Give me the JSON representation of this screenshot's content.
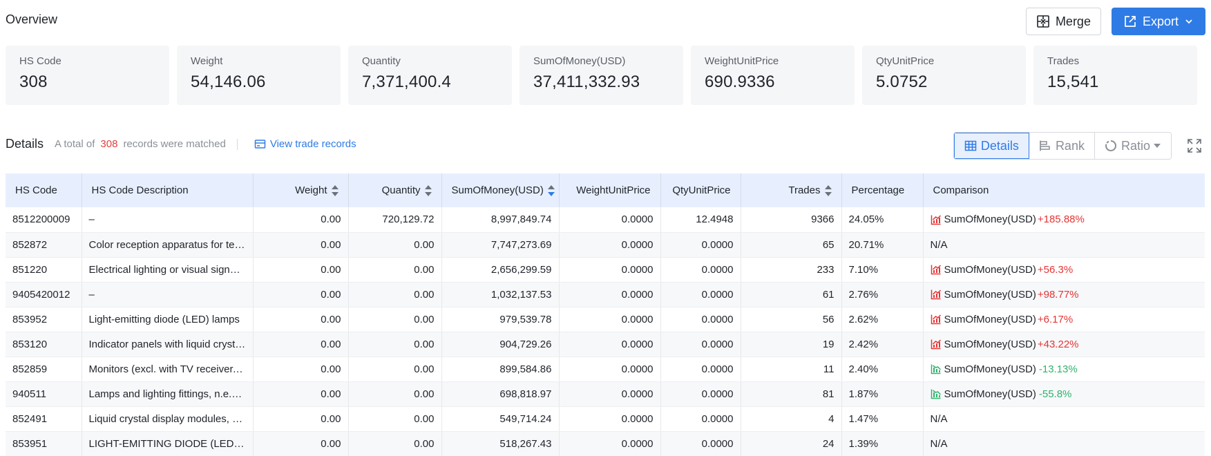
{
  "overview": {
    "title": "Overview",
    "merge_label": "Merge",
    "export_label": "Export"
  },
  "cards": [
    {
      "label": "HS Code",
      "value": "308"
    },
    {
      "label": "Weight",
      "value": "54,146.06"
    },
    {
      "label": "Quantity",
      "value": "7,371,400.4"
    },
    {
      "label": "SumOfMoney(USD)",
      "value": "37,411,332.93"
    },
    {
      "label": "WeightUnitPrice",
      "value": "690.9336"
    },
    {
      "label": "QtyUnitPrice",
      "value": "5.0752"
    },
    {
      "label": "Trades",
      "value": "15,541"
    }
  ],
  "details": {
    "title": "Details",
    "info_prefix": "A total of",
    "count": "308",
    "info_suffix": "records were matched",
    "view_link": "View trade records",
    "toggle_details": "Details",
    "toggle_rank": "Rank",
    "toggle_ratio": "Ratio"
  },
  "table": {
    "headers": [
      "HS Code",
      "HS Code Description",
      "Weight",
      "Quantity",
      "SumOfMoney(USD)",
      "WeightUnitPrice",
      "QtyUnitPrice",
      "Trades",
      "Percentage",
      "Comparison"
    ],
    "rows": [
      {
        "code": "8512200009",
        "desc": "–",
        "weight": "0.00",
        "qty": "720,129.72",
        "sum": "8,997,849.74",
        "wup": "0.0000",
        "qup": "12.4948",
        "trades": "9366",
        "pct": "24.05%",
        "cmp_label": "SumOfMoney(USD)",
        "cmp_value": "+185.88%",
        "trend": "up"
      },
      {
        "code": "852872",
        "desc": "Color reception apparatus for televis...",
        "weight": "0.00",
        "qty": "0.00",
        "sum": "7,747,273.69",
        "wup": "0.0000",
        "qup": "0.0000",
        "trades": "65",
        "pct": "20.71%",
        "cmp_label": "N/A",
        "cmp_value": "",
        "trend": "none"
      },
      {
        "code": "851220",
        "desc": "Electrical lighting or visual signalling...",
        "weight": "0.00",
        "qty": "0.00",
        "sum": "2,656,299.59",
        "wup": "0.0000",
        "qup": "0.0000",
        "trades": "233",
        "pct": "7.10%",
        "cmp_label": "SumOfMoney(USD)",
        "cmp_value": "+56.3%",
        "trend": "up"
      },
      {
        "code": "9405420012",
        "desc": "–",
        "weight": "0.00",
        "qty": "0.00",
        "sum": "1,032,137.53",
        "wup": "0.0000",
        "qup": "0.0000",
        "trades": "61",
        "pct": "2.76%",
        "cmp_label": "SumOfMoney(USD)",
        "cmp_value": "+98.77%",
        "trend": "up"
      },
      {
        "code": "853952",
        "desc": "Light-emitting diode (LED) lamps",
        "weight": "0.00",
        "qty": "0.00",
        "sum": "979,539.78",
        "wup": "0.0000",
        "qup": "0.0000",
        "trades": "56",
        "pct": "2.62%",
        "cmp_label": "SumOfMoney(USD)",
        "cmp_value": "+6.17%",
        "trend": "up"
      },
      {
        "code": "853120",
        "desc": "Indicator panels with liquid crystal d...",
        "weight": "0.00",
        "qty": "0.00",
        "sum": "904,729.26",
        "wup": "0.0000",
        "qup": "0.0000",
        "trades": "19",
        "pct": "2.42%",
        "cmp_label": "SumOfMoney(USD)",
        "cmp_value": "+43.22%",
        "trend": "up"
      },
      {
        "code": "852859",
        "desc": "Monitors (excl. with TV receiver, CRT...",
        "weight": "0.00",
        "qty": "0.00",
        "sum": "899,584.86",
        "wup": "0.0000",
        "qup": "0.0000",
        "trades": "11",
        "pct": "2.40%",
        "cmp_label": "SumOfMoney(USD)",
        "cmp_value": "-13.13%",
        "trend": "down"
      },
      {
        "code": "940511",
        "desc": "Lamps and lighting fittings, n.e.s; lu...",
        "weight": "0.00",
        "qty": "0.00",
        "sum": "698,818.97",
        "wup": "0.0000",
        "qup": "0.0000",
        "trades": "81",
        "pct": "1.87%",
        "cmp_label": "SumOfMoney(USD)",
        "cmp_value": "-55.8%",
        "trend": "down"
      },
      {
        "code": "852491",
        "desc": "Liquid crystal display modules, whet...",
        "weight": "0.00",
        "qty": "0.00",
        "sum": "549,714.24",
        "wup": "0.0000",
        "qup": "0.0000",
        "trades": "4",
        "pct": "1.47%",
        "cmp_label": "N/A",
        "cmp_value": "",
        "trend": "none"
      },
      {
        "code": "853951",
        "desc": "LIGHT-EMITTING DIODE (LED) LIGH...",
        "weight": "0.00",
        "qty": "0.00",
        "sum": "518,267.43",
        "wup": "0.0000",
        "qup": "0.0000",
        "trades": "24",
        "pct": "1.39%",
        "cmp_label": "N/A",
        "cmp_value": "",
        "trend": "none"
      }
    ]
  },
  "colors": {
    "accent": "#2f7be6",
    "up": "#e63333",
    "down": "#2fb36a",
    "header_bg": "#e7efff"
  }
}
